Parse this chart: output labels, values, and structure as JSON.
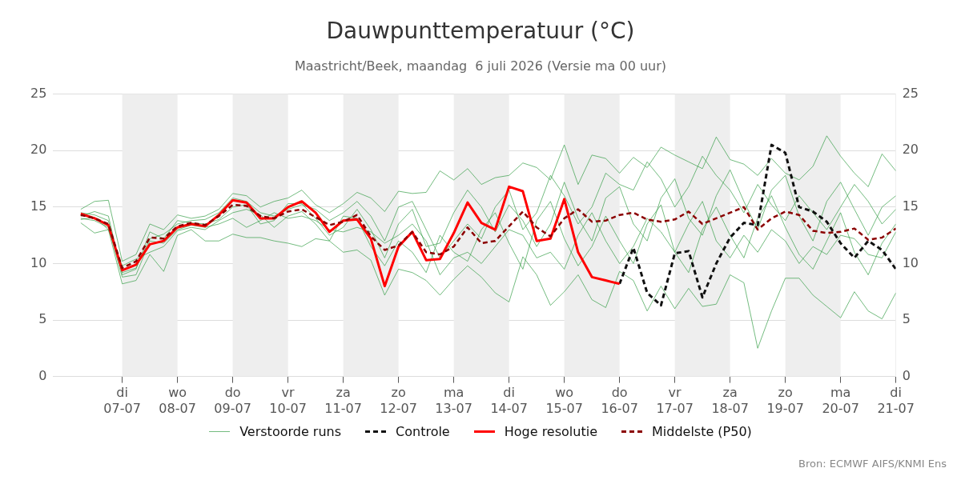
{
  "chart_data": {
    "type": "line",
    "title": "Dauwpunttemperatuur (°C)",
    "subtitle": "Maastricht/Beek, maandag  6 juli 2026 (Versie ma 00 uur)",
    "x": [
      "2026-07-06T06:00",
      "2026-07-06T12:00",
      "2026-07-06T18:00",
      "2026-07-07T00:00",
      "2026-07-07T06:00",
      "2026-07-07T12:00",
      "2026-07-07T18:00",
      "2026-07-08T00:00",
      "2026-07-08T06:00",
      "2026-07-08T12:00",
      "2026-07-08T18:00",
      "2026-07-09T00:00",
      "2026-07-09T06:00",
      "2026-07-09T12:00",
      "2026-07-09T18:00",
      "2026-07-10T00:00",
      "2026-07-10T06:00",
      "2026-07-10T12:00",
      "2026-07-10T18:00",
      "2026-07-11T00:00",
      "2026-07-11T06:00",
      "2026-07-11T12:00",
      "2026-07-11T18:00",
      "2026-07-12T00:00",
      "2026-07-12T06:00",
      "2026-07-12T12:00",
      "2026-07-12T18:00",
      "2026-07-13T00:00",
      "2026-07-13T06:00",
      "2026-07-13T12:00",
      "2026-07-13T18:00",
      "2026-07-14T00:00",
      "2026-07-14T06:00",
      "2026-07-14T12:00",
      "2026-07-14T18:00",
      "2026-07-15T00:00",
      "2026-07-15T06:00",
      "2026-07-15T12:00",
      "2026-07-15T18:00",
      "2026-07-16T00:00",
      "2026-07-16T06:00",
      "2026-07-16T12:00",
      "2026-07-16T18:00",
      "2026-07-17T00:00",
      "2026-07-17T06:00",
      "2026-07-17T12:00",
      "2026-07-17T18:00",
      "2026-07-18T00:00",
      "2026-07-18T06:00",
      "2026-07-18T12:00",
      "2026-07-18T18:00",
      "2026-07-19T00:00",
      "2026-07-19T06:00",
      "2026-07-19T12:00",
      "2026-07-19T18:00",
      "2026-07-20T00:00",
      "2026-07-20T06:00",
      "2026-07-20T12:00",
      "2026-07-20T18:00",
      "2026-07-21T00:00"
    ],
    "series": [
      {
        "name": "Verstoorde runs",
        "color": "#2e9a40",
        "values": [
          14.8,
          15.5,
          15.6,
          10.2,
          10.8,
          13.5,
          13.0,
          14.3,
          14.0,
          14.2,
          14.8,
          16.2,
          16.0,
          15.0,
          15.5,
          15.8,
          16.5,
          15.2,
          14.5,
          15.3,
          16.3,
          15.8,
          14.6,
          16.4,
          16.2,
          16.3,
          18.2,
          17.4,
          18.4,
          17.0,
          17.6,
          17.8,
          18.9,
          18.5,
          17.4,
          20.5,
          17.0,
          19.6,
          19.3,
          18.0,
          19.4,
          18.5,
          20.3,
          19.6,
          19.0,
          18.4,
          21.2,
          19.2,
          18.8,
          17.8,
          19.3,
          18.0,
          17.4,
          18.6,
          21.3,
          19.5,
          18.0,
          16.8,
          19.7,
          18.2
        ]
      },
      {
        "color": "#2e9a40",
        "values": [
          13.6,
          12.7,
          13.0,
          8.2,
          8.5,
          10.8,
          9.3,
          12.5,
          13.0,
          12.0,
          12.0,
          12.6,
          12.3,
          12.3,
          12.0,
          11.8,
          11.5,
          12.2,
          12.0,
          11.0,
          11.2,
          10.3,
          7.2,
          9.5,
          9.2,
          8.5,
          7.2,
          8.6,
          9.8,
          8.8,
          7.4,
          6.6,
          10.6,
          9.0,
          6.3,
          7.5,
          9.0,
          6.8,
          6.1,
          9.3,
          8.5,
          5.8,
          8.0,
          6.0,
          7.8,
          6.2,
          6.4,
          9.0,
          8.3,
          2.5,
          5.8,
          8.7,
          8.7,
          7.2,
          6.2,
          5.2,
          7.5,
          5.8,
          5.1,
          7.4
        ]
      },
      {
        "color": "#2e9a40",
        "values": [
          14.2,
          14.6,
          14.2,
          9.0,
          9.5,
          12.8,
          12.2,
          13.8,
          13.6,
          13.5,
          13.9,
          15.0,
          15.2,
          13.5,
          13.8,
          15.3,
          15.3,
          14.0,
          12.5,
          13.2,
          14.8,
          13.0,
          10.5,
          13.5,
          14.8,
          11.5,
          11.8,
          14.5,
          16.5,
          15.0,
          12.8,
          15.2,
          13.8,
          11.5,
          13.5,
          17.2,
          14.0,
          12.0,
          15.8,
          16.8,
          13.5,
          12.0,
          15.8,
          17.5,
          14.0,
          12.5,
          16.0,
          18.3,
          15.5,
          13.0,
          16.5,
          17.8,
          14.2,
          12.0,
          15.5,
          17.2,
          14.8,
          12.5,
          15.0,
          16.0
        ]
      },
      {
        "color": "#2e9a40",
        "values": [
          13.9,
          14.1,
          13.0,
          9.8,
          10.4,
          11.0,
          11.5,
          12.9,
          13.2,
          13.0,
          13.8,
          14.5,
          14.8,
          14.3,
          13.2,
          14.2,
          14.6,
          13.5,
          12.0,
          14.2,
          14.0,
          11.5,
          9.8,
          12.0,
          11.0,
          9.2,
          12.5,
          11.0,
          10.2,
          13.0,
          14.5,
          11.8,
          9.5,
          13.8,
          15.5,
          12.2,
          9.8,
          11.5,
          14.2,
          12.0,
          10.0,
          13.5,
          15.2,
          11.0,
          9.2,
          13.0,
          15.0,
          12.5,
          10.5,
          14.0,
          16.0,
          13.2,
          10.8,
          9.5,
          12.0,
          14.5,
          11.0,
          9.0,
          11.8,
          13.5
        ]
      },
      {
        "color": "#2e9a40",
        "values": [
          14.5,
          14.3,
          13.8,
          9.2,
          9.6,
          12.2,
          12.6,
          13.5,
          13.8,
          13.9,
          14.5,
          15.8,
          15.5,
          14.5,
          14.2,
          14.8,
          15.2,
          14.8,
          13.8,
          14.5,
          15.5,
          14.2,
          12.0,
          15.0,
          15.5,
          13.0,
          10.5,
          12.0,
          13.5,
          12.2,
          15.0,
          16.5,
          13.0,
          14.5,
          17.8,
          16.0,
          13.5,
          15.0,
          18.0,
          17.0,
          16.5,
          19.0,
          17.5,
          15.0,
          16.8,
          19.5,
          17.8,
          16.5,
          14.5,
          17.0,
          15.2,
          13.8,
          16.0,
          14.5,
          13.0,
          15.0,
          17.0,
          15.5,
          13.5,
          14.8
        ]
      },
      {
        "color": "#2e9a40",
        "values": [
          14.0,
          13.8,
          13.2,
          8.8,
          9.0,
          12.0,
          11.8,
          13.0,
          13.4,
          13.2,
          13.5,
          14.0,
          13.2,
          13.8,
          14.5,
          14.0,
          14.2,
          13.8,
          13.0,
          12.8,
          13.2,
          12.8,
          11.8,
          12.5,
          13.5,
          12.0,
          9.0,
          10.5,
          11.0,
          10.0,
          11.5,
          13.0,
          12.5,
          10.5,
          11.0,
          9.5,
          12.5,
          14.5,
          12.0,
          10.0,
          11.5,
          14.0,
          12.8,
          11.0,
          13.5,
          15.5,
          12.0,
          10.5,
          12.5,
          11.0,
          13.0,
          12.0,
          10.0,
          11.5,
          10.8,
          12.5,
          12.2,
          10.8,
          10.5,
          12.8
        ]
      },
      {
        "name": "Controle",
        "color": "#111111",
        "line_style": "dashed",
        "values": [
          null,
          null,
          null,
          null,
          null,
          null,
          null,
          null,
          null,
          null,
          null,
          null,
          null,
          null,
          null,
          null,
          null,
          null,
          null,
          null,
          null,
          null,
          null,
          null,
          null,
          null,
          null,
          null,
          null,
          null,
          null,
          null,
          null,
          null,
          null,
          null,
          null,
          null,
          null,
          8.2,
          11.4,
          7.4,
          6.3,
          10.9,
          11.1,
          7.0,
          10.0,
          12.3,
          13.6,
          13.4,
          20.5,
          19.8,
          15.0,
          14.6,
          13.7,
          11.8,
          10.5,
          12.0,
          11.2,
          9.5
        ]
      },
      {
        "name": "Hoge resolutie",
        "color": "#ff0000",
        "x": [
          "2026-07-06T06:00",
          "2026-07-06T12:00",
          "2026-07-06T18:00",
          "2026-07-07T00:00",
          "2026-07-07T06:00",
          "2026-07-07T12:00",
          "2026-07-07T18:00",
          "2026-07-08T00:00",
          "2026-07-08T06:00",
          "2026-07-08T12:00",
          "2026-07-08T18:00",
          "2026-07-09T00:00",
          "2026-07-09T06:00",
          "2026-07-09T12:00",
          "2026-07-09T18:00",
          "2026-07-10T00:00",
          "2026-07-10T06:00",
          "2026-07-10T12:00",
          "2026-07-10T18:00",
          "2026-07-11T00:00",
          "2026-07-11T06:00",
          "2026-07-11T12:00",
          "2026-07-11T18:00",
          "2026-07-12T00:00",
          "2026-07-12T06:00",
          "2026-07-12T12:00",
          "2026-07-12T18:00",
          "2026-07-13T00:00",
          "2026-07-13T06:00",
          "2026-07-13T12:00",
          "2026-07-13T18:00",
          "2026-07-14T00:00",
          "2026-07-14T06:00",
          "2026-07-14T12:00",
          "2026-07-14T18:00",
          "2026-07-15T00:00",
          "2026-07-15T06:00",
          "2026-07-15T12:00",
          "2026-07-15T18:00",
          "2026-07-16T00:00"
        ],
        "values": [
          14.4,
          14.0,
          13.4,
          9.4,
          9.9,
          11.7,
          12.0,
          13.2,
          13.5,
          13.3,
          14.3,
          15.6,
          15.4,
          14.0,
          14.0,
          15.0,
          15.5,
          14.5,
          12.8,
          13.8,
          13.9,
          12.2,
          8.0,
          11.5,
          12.8,
          10.3,
          10.4,
          12.7,
          15.4,
          13.6,
          13.0,
          16.8,
          16.4,
          12.0,
          12.2,
          15.7,
          11.0,
          8.8,
          8.5,
          8.2
        ]
      },
      {
        "name": "Middelste (P50)",
        "color": "#8b0000",
        "line_style": "dashed",
        "values": [
          14.3,
          14.0,
          13.5,
          9.6,
          10.2,
          12.3,
          12.2,
          13.3,
          13.6,
          13.4,
          14.2,
          15.2,
          15.1,
          14.2,
          14.0,
          14.6,
          14.8,
          14.1,
          13.4,
          13.7,
          14.3,
          12.4,
          11.2,
          11.6,
          12.8,
          11.0,
          10.8,
          11.5,
          13.2,
          11.8,
          12.0,
          13.3,
          14.6,
          13.2,
          12.4,
          14.0,
          14.8,
          13.7,
          13.8,
          14.3,
          14.5,
          13.9,
          13.7,
          13.9,
          14.6,
          13.5,
          14.0,
          14.5,
          15.0,
          13.0,
          14.0,
          14.6,
          14.3,
          12.9,
          12.7,
          12.8,
          13.1,
          12.1,
          12.3,
          13.1
        ]
      }
    ],
    "xlim": [
      "2026-07-05T18:00",
      "2026-07-21T00:00"
    ],
    "xticks": [
      {
        "value": "2026-07-07",
        "label": "di\n07-07"
      },
      {
        "value": "2026-07-08",
        "label": "wo\n08-07"
      },
      {
        "value": "2026-07-09",
        "label": "do\n09-07"
      },
      {
        "value": "2026-07-10",
        "label": "vr\n10-07"
      },
      {
        "value": "2026-07-11",
        "label": "za\n11-07"
      },
      {
        "value": "2026-07-12",
        "label": "zo\n12-07"
      },
      {
        "value": "2026-07-13",
        "label": "ma\n13-07"
      },
      {
        "value": "2026-07-14",
        "label": "di\n14-07"
      },
      {
        "value": "2026-07-15",
        "label": "wo\n15-07"
      },
      {
        "value": "2026-07-16",
        "label": "do\n16-07"
      },
      {
        "value": "2026-07-17",
        "label": "vr\n17-07"
      },
      {
        "value": "2026-07-18",
        "label": "za\n18-07"
      },
      {
        "value": "2026-07-19",
        "label": "zo\n19-07"
      },
      {
        "value": "2026-07-20",
        "label": "ma\n20-07"
      },
      {
        "value": "2026-07-21",
        "label": "di\n21-07"
      }
    ],
    "ylim": [
      0,
      25
    ],
    "yticks": [
      0,
      5,
      10,
      15,
      20,
      25
    ],
    "y2lim": [
      0,
      25
    ],
    "y2ticks": [
      0,
      5,
      10,
      15,
      20,
      25
    ],
    "bands": [
      {
        "axis": "x",
        "from": "2026-07-07",
        "to": "2026-07-08",
        "color": "#eeeeee"
      },
      {
        "axis": "x",
        "from": "2026-07-09",
        "to": "2026-07-10",
        "color": "#eeeeee"
      },
      {
        "axis": "x",
        "from": "2026-07-11",
        "to": "2026-07-12",
        "color": "#eeeeee"
      },
      {
        "axis": "x",
        "from": "2026-07-13",
        "to": "2026-07-14",
        "color": "#eeeeee"
      },
      {
        "axis": "x",
        "from": "2026-07-15",
        "to": "2026-07-16",
        "color": "#eeeeee"
      },
      {
        "axis": "x",
        "from": "2026-07-17",
        "to": "2026-07-18",
        "color": "#eeeeee"
      },
      {
        "axis": "x",
        "from": "2026-07-19",
        "to": "2026-07-20",
        "color": "#eeeeee"
      }
    ],
    "grid": "y",
    "legend": "bottom",
    "marker": "none",
    "annotations": [
      "Bron: ECMWF AIFS/KNMI Ens"
    ]
  }
}
